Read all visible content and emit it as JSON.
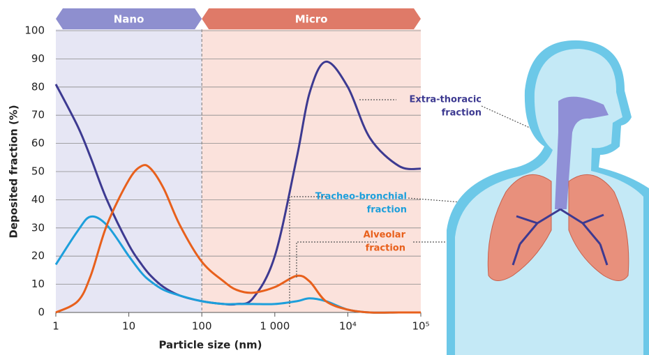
{
  "chart_data": {
    "type": "line",
    "y_label": "Deposited fraction (%)",
    "x_label": "Particle size (nm)",
    "log_x": true,
    "grid": true,
    "xlim": [
      1,
      100000
    ],
    "ylim": [
      0,
      100
    ],
    "xticks": [
      1,
      10,
      100,
      {
        "value": 1000,
        "label": "1 000"
      },
      {
        "value": 10000,
        "label": "10⁴"
      },
      {
        "value": 100000,
        "label": "10⁵"
      }
    ],
    "yticks": [
      0,
      10,
      20,
      30,
      40,
      50,
      60,
      70,
      80,
      90,
      100
    ],
    "regions": [
      {
        "label": "Nano",
        "range": [
          1,
          100
        ],
        "color": "#8e8fcf",
        "fill": "#e6e6f4"
      },
      {
        "label": "Micro",
        "range": [
          100,
          100000
        ],
        "color": "#df7a68",
        "fill": "#fbe2dc"
      }
    ],
    "x": [
      1,
      2,
      3,
      5,
      10,
      15,
      20,
      30,
      50,
      100,
      200,
      300,
      500,
      1000,
      2000,
      3000,
      5000,
      10000,
      20000,
      50000,
      100000
    ],
    "series": [
      {
        "label": [
          "Extra-thoracic",
          "fraction"
        ],
        "color": "#3d3a91",
        "values": [
          81,
          66,
          55,
          40,
          24,
          17,
          13,
          9,
          6,
          4,
          3,
          3,
          5,
          20,
          55,
          78,
          89,
          80,
          62,
          52,
          51
        ]
      },
      {
        "label": [
          "Tracheo-bronchial",
          "fraction"
        ],
        "color": "#1d9fdb",
        "values": [
          17,
          29,
          34,
          31,
          20,
          14,
          11,
          8,
          6,
          4,
          3,
          3,
          3,
          3,
          4,
          5,
          4,
          1,
          0,
          0,
          0
        ]
      },
      {
        "label": [
          "Alveolar",
          "fraction"
        ],
        "color": "#e8601c",
        "values": [
          0,
          4,
          13,
          31,
          47,
          52,
          51,
          44,
          31,
          18,
          11,
          8,
          7,
          9,
          13,
          11,
          4,
          1,
          0,
          0,
          0
        ]
      }
    ]
  }
}
